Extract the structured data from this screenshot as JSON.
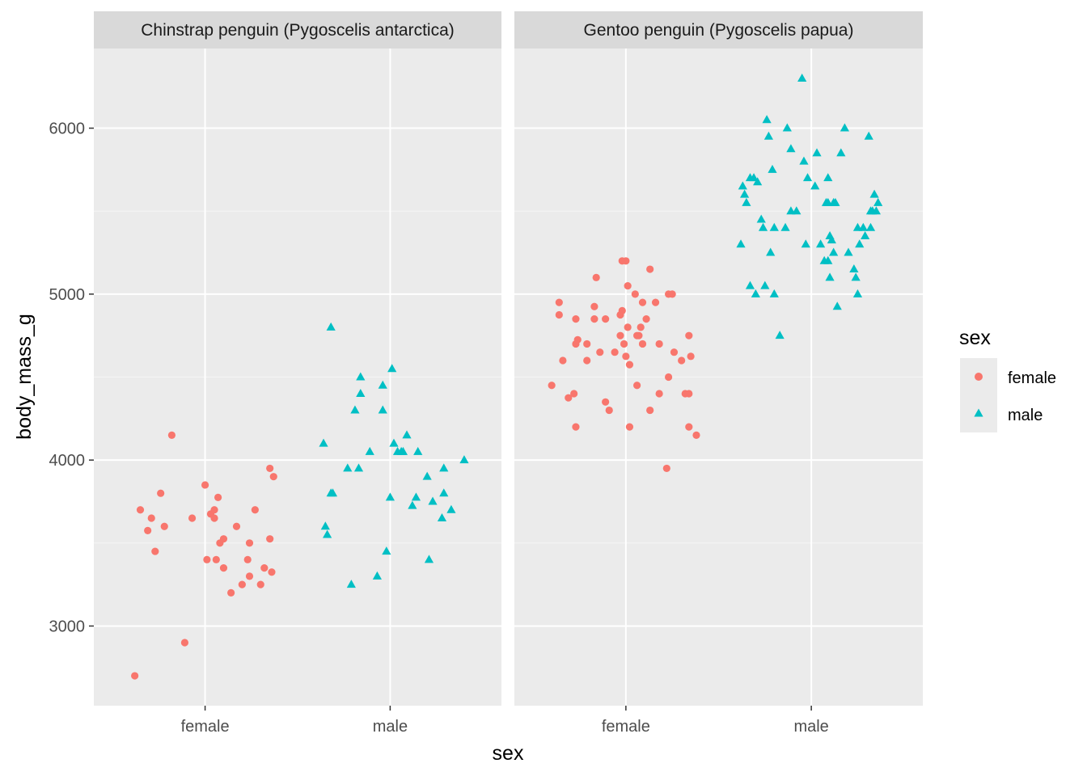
{
  "chart_data": {
    "type": "scatter",
    "title": "",
    "xlabel": "sex",
    "ylabel": "body_mass_g",
    "ylim": [
      2520,
      6480
    ],
    "y_ticks": [
      3000,
      4000,
      5000,
      6000
    ],
    "x_categories": [
      "female",
      "male"
    ],
    "grid": true,
    "jitter": true,
    "legend": {
      "title": "sex",
      "placement": "right",
      "entries": [
        {
          "label": "female",
          "shape": "circle",
          "color": "#F8766D"
        },
        {
          "label": "male",
          "shape": "triangle",
          "color": "#00BFC4"
        }
      ]
    },
    "panels": [
      {
        "strip": "Chinstrap penguin (Pygoscelis antarctica)",
        "series": [
          {
            "name": "female",
            "points": [
              {
                "x": -0.38,
                "y": 2700
              },
              {
                "x": -0.11,
                "y": 2900
              },
              {
                "x": -0.35,
                "y": 3700
              },
              {
                "x": -0.29,
                "y": 3650
              },
              {
                "x": -0.31,
                "y": 3575
              },
              {
                "x": -0.27,
                "y": 3450
              },
              {
                "x": -0.24,
                "y": 3800
              },
              {
                "x": -0.22,
                "y": 3600
              },
              {
                "x": -0.18,
                "y": 4150
              },
              {
                "x": -0.07,
                "y": 3650
              },
              {
                "x": 0.0,
                "y": 3850
              },
              {
                "x": 0.01,
                "y": 3400
              },
              {
                "x": 0.03,
                "y": 3675
              },
              {
                "x": 0.05,
                "y": 3650
              },
              {
                "x": 0.05,
                "y": 3700
              },
              {
                "x": 0.06,
                "y": 3400
              },
              {
                "x": 0.07,
                "y": 3775
              },
              {
                "x": 0.08,
                "y": 3500
              },
              {
                "x": 0.1,
                "y": 3350
              },
              {
                "x": 0.1,
                "y": 3525
              },
              {
                "x": 0.14,
                "y": 3200
              },
              {
                "x": 0.17,
                "y": 3600
              },
              {
                "x": 0.2,
                "y": 3250
              },
              {
                "x": 0.23,
                "y": 3400
              },
              {
                "x": 0.24,
                "y": 3300
              },
              {
                "x": 0.24,
                "y": 3500
              },
              {
                "x": 0.27,
                "y": 3700
              },
              {
                "x": 0.3,
                "y": 3250
              },
              {
                "x": 0.32,
                "y": 3350
              },
              {
                "x": 0.35,
                "y": 3950
              },
              {
                "x": 0.35,
                "y": 3525
              },
              {
                "x": 0.36,
                "y": 3325
              },
              {
                "x": 0.37,
                "y": 3900
              }
            ]
          },
          {
            "name": "male",
            "points": [
              {
                "x": -0.36,
                "y": 4100
              },
              {
                "x": -0.35,
                "y": 3600
              },
              {
                "x": -0.34,
                "y": 3550
              },
              {
                "x": -0.32,
                "y": 4800
              },
              {
                "x": -0.32,
                "y": 3800
              },
              {
                "x": -0.31,
                "y": 3800
              },
              {
                "x": -0.23,
                "y": 3950
              },
              {
                "x": -0.21,
                "y": 3250
              },
              {
                "x": -0.19,
                "y": 4300
              },
              {
                "x": -0.17,
                "y": 3950
              },
              {
                "x": -0.16,
                "y": 4500
              },
              {
                "x": -0.16,
                "y": 4400
              },
              {
                "x": -0.11,
                "y": 4050
              },
              {
                "x": -0.07,
                "y": 3300
              },
              {
                "x": -0.04,
                "y": 4450
              },
              {
                "x": -0.04,
                "y": 4300
              },
              {
                "x": -0.02,
                "y": 3450
              },
              {
                "x": 0.0,
                "y": 3775
              },
              {
                "x": 0.01,
                "y": 4550
              },
              {
                "x": 0.02,
                "y": 4100
              },
              {
                "x": 0.04,
                "y": 4050
              },
              {
                "x": 0.06,
                "y": 4050
              },
              {
                "x": 0.07,
                "y": 4050
              },
              {
                "x": 0.09,
                "y": 4150
              },
              {
                "x": 0.12,
                "y": 3725
              },
              {
                "x": 0.14,
                "y": 3775
              },
              {
                "x": 0.15,
                "y": 4050
              },
              {
                "x": 0.2,
                "y": 3900
              },
              {
                "x": 0.21,
                "y": 3400
              },
              {
                "x": 0.23,
                "y": 3750
              },
              {
                "x": 0.28,
                "y": 3650
              },
              {
                "x": 0.29,
                "y": 3950
              },
              {
                "x": 0.29,
                "y": 3800
              },
              {
                "x": 0.33,
                "y": 3700
              },
              {
                "x": 0.4,
                "y": 4000
              }
            ]
          }
        ]
      },
      {
        "strip": "Gentoo penguin (Pygoscelis papua)",
        "series": [
          {
            "name": "female",
            "points": [
              {
                "x": -0.4,
                "y": 4450
              },
              {
                "x": -0.36,
                "y": 4950
              },
              {
                "x": -0.36,
                "y": 4875
              },
              {
                "x": -0.34,
                "y": 4600
              },
              {
                "x": -0.31,
                "y": 4375
              },
              {
                "x": -0.28,
                "y": 4400
              },
              {
                "x": -0.27,
                "y": 4200
              },
              {
                "x": -0.27,
                "y": 4850
              },
              {
                "x": -0.27,
                "y": 4700
              },
              {
                "x": -0.26,
                "y": 4725
              },
              {
                "x": -0.21,
                "y": 4700
              },
              {
                "x": -0.21,
                "y": 4600
              },
              {
                "x": -0.17,
                "y": 4925
              },
              {
                "x": -0.17,
                "y": 4850
              },
              {
                "x": -0.16,
                "y": 5100
              },
              {
                "x": -0.14,
                "y": 4650
              },
              {
                "x": -0.11,
                "y": 4350
              },
              {
                "x": -0.11,
                "y": 4850
              },
              {
                "x": -0.09,
                "y": 4300
              },
              {
                "x": -0.06,
                "y": 4650
              },
              {
                "x": -0.03,
                "y": 4750
              },
              {
                "x": -0.03,
                "y": 4875
              },
              {
                "x": -0.02,
                "y": 4900
              },
              {
                "x": -0.02,
                "y": 5200
              },
              {
                "x": -0.01,
                "y": 4700
              },
              {
                "x": 0.0,
                "y": 5200
              },
              {
                "x": 0.0,
                "y": 4625
              },
              {
                "x": 0.01,
                "y": 5050
              },
              {
                "x": 0.01,
                "y": 4800
              },
              {
                "x": 0.02,
                "y": 4200
              },
              {
                "x": 0.02,
                "y": 4575
              },
              {
                "x": 0.05,
                "y": 5000
              },
              {
                "x": 0.06,
                "y": 4750
              },
              {
                "x": 0.06,
                "y": 4450
              },
              {
                "x": 0.07,
                "y": 4750
              },
              {
                "x": 0.08,
                "y": 4800
              },
              {
                "x": 0.09,
                "y": 4950
              },
              {
                "x": 0.09,
                "y": 4700
              },
              {
                "x": 0.11,
                "y": 4850
              },
              {
                "x": 0.13,
                "y": 5150
              },
              {
                "x": 0.13,
                "y": 4300
              },
              {
                "x": 0.16,
                "y": 4950
              },
              {
                "x": 0.18,
                "y": 4700
              },
              {
                "x": 0.18,
                "y": 4400
              },
              {
                "x": 0.22,
                "y": 3950
              },
              {
                "x": 0.23,
                "y": 4500
              },
              {
                "x": 0.23,
                "y": 5000
              },
              {
                "x": 0.25,
                "y": 5000
              },
              {
                "x": 0.26,
                "y": 4650
              },
              {
                "x": 0.3,
                "y": 4600
              },
              {
                "x": 0.32,
                "y": 4400
              },
              {
                "x": 0.34,
                "y": 4750
              },
              {
                "x": 0.34,
                "y": 4400
              },
              {
                "x": 0.34,
                "y": 4200
              },
              {
                "x": 0.35,
                "y": 4625
              },
              {
                "x": 0.38,
                "y": 4150
              }
            ]
          },
          {
            "name": "male",
            "points": [
              {
                "x": -0.38,
                "y": 5300
              },
              {
                "x": -0.37,
                "y": 5650
              },
              {
                "x": -0.36,
                "y": 5600
              },
              {
                "x": -0.35,
                "y": 5550
              },
              {
                "x": -0.33,
                "y": 5050
              },
              {
                "x": -0.33,
                "y": 5700
              },
              {
                "x": -0.31,
                "y": 5700
              },
              {
                "x": -0.3,
                "y": 5000
              },
              {
                "x": -0.29,
                "y": 5675
              },
              {
                "x": -0.27,
                "y": 5450
              },
              {
                "x": -0.26,
                "y": 5400
              },
              {
                "x": -0.25,
                "y": 5050
              },
              {
                "x": -0.24,
                "y": 6050
              },
              {
                "x": -0.23,
                "y": 5950
              },
              {
                "x": -0.22,
                "y": 5250
              },
              {
                "x": -0.21,
                "y": 5750
              },
              {
                "x": -0.2,
                "y": 5400
              },
              {
                "x": -0.2,
                "y": 5000
              },
              {
                "x": -0.17,
                "y": 4750
              },
              {
                "x": -0.14,
                "y": 5400
              },
              {
                "x": -0.13,
                "y": 6000
              },
              {
                "x": -0.11,
                "y": 5875
              },
              {
                "x": -0.11,
                "y": 5500
              },
              {
                "x": -0.08,
                "y": 5500
              },
              {
                "x": -0.05,
                "y": 6300
              },
              {
                "x": -0.04,
                "y": 5800
              },
              {
                "x": -0.03,
                "y": 5300
              },
              {
                "x": -0.02,
                "y": 5700
              },
              {
                "x": 0.02,
                "y": 5650
              },
              {
                "x": 0.03,
                "y": 5850
              },
              {
                "x": 0.05,
                "y": 5300
              },
              {
                "x": 0.07,
                "y": 5200
              },
              {
                "x": 0.08,
                "y": 5550
              },
              {
                "x": 0.09,
                "y": 5700
              },
              {
                "x": 0.09,
                "y": 5550
              },
              {
                "x": 0.09,
                "y": 5200
              },
              {
                "x": 0.1,
                "y": 5350
              },
              {
                "x": 0.1,
                "y": 5100
              },
              {
                "x": 0.11,
                "y": 5325
              },
              {
                "x": 0.12,
                "y": 5250
              },
              {
                "x": 0.12,
                "y": 5550
              },
              {
                "x": 0.13,
                "y": 5550
              },
              {
                "x": 0.14,
                "y": 4925
              },
              {
                "x": 0.16,
                "y": 5850
              },
              {
                "x": 0.18,
                "y": 6000
              },
              {
                "x": 0.2,
                "y": 5250
              },
              {
                "x": 0.23,
                "y": 5150
              },
              {
                "x": 0.24,
                "y": 5100
              },
              {
                "x": 0.25,
                "y": 5000
              },
              {
                "x": 0.25,
                "y": 5400
              },
              {
                "x": 0.26,
                "y": 5300
              },
              {
                "x": 0.28,
                "y": 5400
              },
              {
                "x": 0.29,
                "y": 5350
              },
              {
                "x": 0.31,
                "y": 5950
              },
              {
                "x": 0.32,
                "y": 5500
              },
              {
                "x": 0.32,
                "y": 5400
              },
              {
                "x": 0.33,
                "y": 5500
              },
              {
                "x": 0.34,
                "y": 5600
              },
              {
                "x": 0.36,
                "y": 5550
              },
              {
                "x": 0.35,
                "y": 5500
              }
            ]
          }
        ]
      }
    ]
  }
}
